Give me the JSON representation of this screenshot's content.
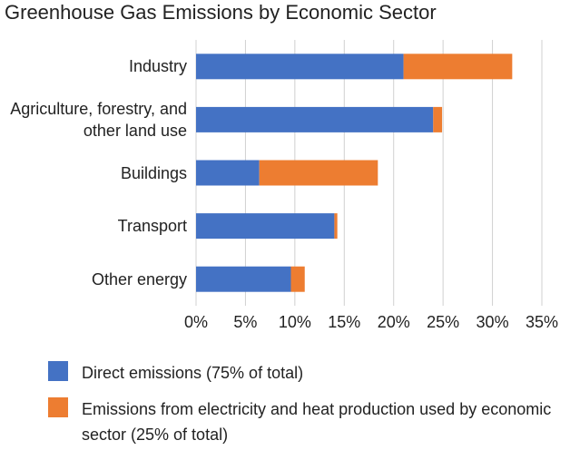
{
  "chart_data": {
    "type": "stacked-barh",
    "title": "Greenhouse Gas Emissions by Economic Sector",
    "categories": [
      "Industry",
      "Agriculture, forestry, and other land use",
      "Buildings",
      "Transport",
      "Other energy"
    ],
    "series": [
      {
        "name": "Direct emissions (75% of total)",
        "color": "#4472c4",
        "values": [
          21,
          24,
          6.4,
          14,
          9.6
        ]
      },
      {
        "name": "Emissions from electricity and heat production used by economic sector (25% of total)",
        "color": "#ed7d31",
        "values": [
          11,
          0.9,
          12,
          0.3,
          1.4
        ]
      }
    ],
    "xlim": [
      0,
      35
    ],
    "xticks": [
      {
        "value": 0,
        "label": "0%"
      },
      {
        "value": 5,
        "label": "5%"
      },
      {
        "value": 10,
        "label": "10%"
      },
      {
        "value": 15,
        "label": "15%"
      },
      {
        "value": 20,
        "label": "20%"
      },
      {
        "value": 25,
        "label": "25%"
      },
      {
        "value": 30,
        "label": "30%"
      },
      {
        "value": 35,
        "label": "35%"
      }
    ],
    "grid": true,
    "legend": "bottom"
  }
}
